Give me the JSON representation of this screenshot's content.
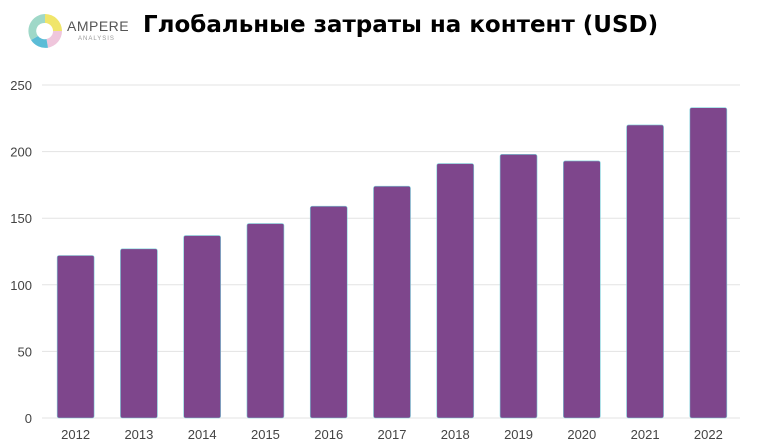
{
  "logo": {
    "name": "AMPERE",
    "sub": "ANALYSIS"
  },
  "colors": {
    "bar": "#7e468c",
    "bar_edge": "#7fd3dc",
    "grid": "#e3e3e3"
  },
  "chart_data": {
    "type": "bar",
    "title": "Глобальные затраты на контент (USD)",
    "xlabel": "",
    "ylabel": "",
    "categories": [
      "2012",
      "2013",
      "2014",
      "2015",
      "2016",
      "2017",
      "2018",
      "2019",
      "2020",
      "2021",
      "2022"
    ],
    "values": [
      122,
      127,
      137,
      146,
      159,
      174,
      191,
      198,
      193,
      220,
      233
    ],
    "ylim": [
      0,
      250
    ],
    "yticks": [
      "0",
      "50",
      "100",
      "150",
      "200",
      "250"
    ],
    "grid": true,
    "legend": "none"
  }
}
